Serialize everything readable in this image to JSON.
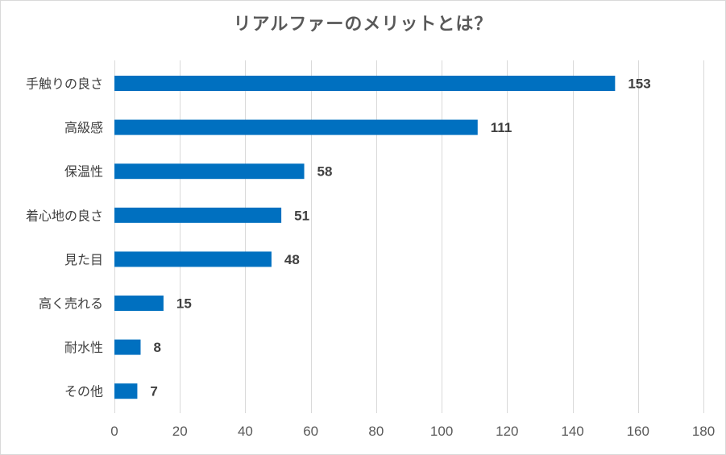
{
  "chart_data": {
    "type": "bar",
    "orientation": "horizontal",
    "title": "リアルファーのメリットとは？",
    "categories": [
      "手触りの良さ",
      "高級感",
      "保温性",
      "着心地の良さ",
      "見た目",
      "高く売れる",
      "耐水性",
      "その他"
    ],
    "values": [
      153,
      111,
      58,
      51,
      48,
      15,
      8,
      7
    ],
    "xlim": [
      0,
      180
    ],
    "xticks": [
      0,
      20,
      40,
      60,
      80,
      100,
      120,
      140,
      160,
      180
    ],
    "xlabel": "",
    "ylabel": "",
    "grid": "vertical",
    "bar_color": "#0070c0",
    "data_labels": true
  }
}
